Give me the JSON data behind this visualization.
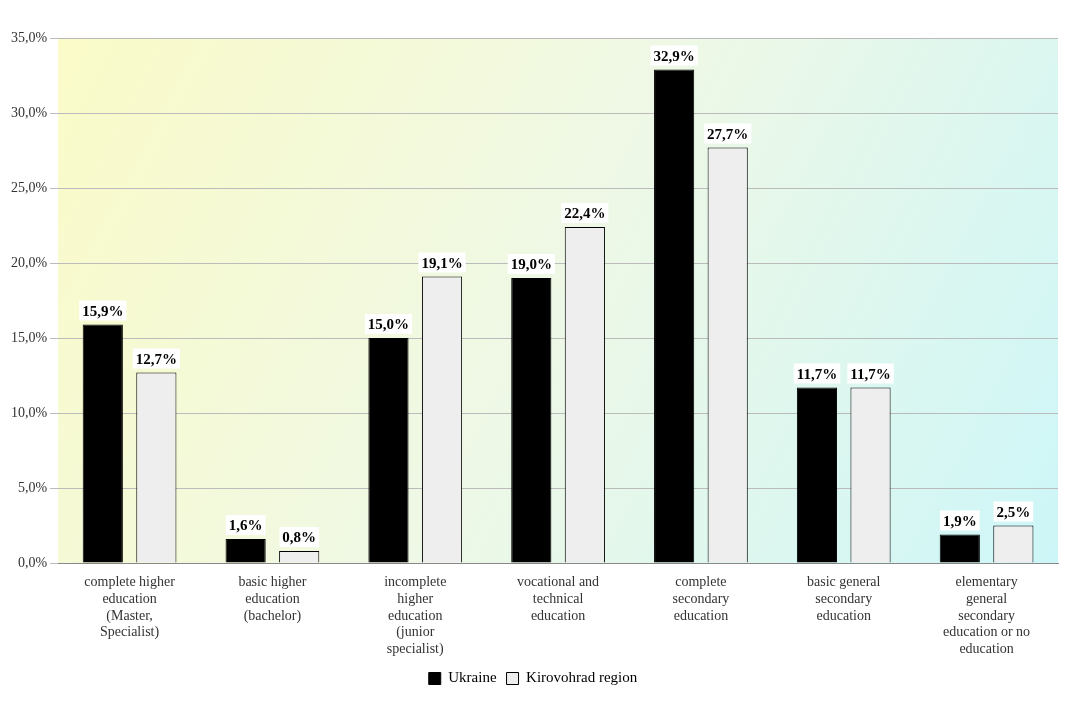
{
  "chart_data": {
    "type": "bar",
    "categories": [
      "complete higher education (Master, Specialist)",
      "basic higher education (bachelor)",
      "incomplete higher education (junior specialist)",
      "vocational and technical education",
      "complete secondary education",
      "basic general secondary education",
      "elementary general secondary education or no education"
    ],
    "series": [
      {
        "name": "Ukraine",
        "color": "#000000",
        "values": [
          15.9,
          1.6,
          15.0,
          19.0,
          32.9,
          11.7,
          1.9
        ],
        "value_labels": [
          "15,9%",
          "1,6%",
          "15,0%",
          "19,0%",
          "32,9%",
          "11,7%",
          "1,9%"
        ]
      },
      {
        "name": "Kirovohrad region",
        "color": "#eeeeee",
        "values": [
          12.7,
          0.8,
          19.1,
          22.4,
          27.7,
          11.7,
          2.5
        ],
        "value_labels": [
          "12,7%",
          "0,8%",
          "19,1%",
          "22,4%",
          "27,7%",
          "11,7%",
          "2,5%"
        ]
      }
    ],
    "ylim": [
      0,
      35
    ],
    "yticks": [
      {
        "value": 0,
        "label": "0,0%"
      },
      {
        "value": 5,
        "label": "5,0%"
      },
      {
        "value": 10,
        "label": "10,0%"
      },
      {
        "value": 15,
        "label": "15,0%"
      },
      {
        "value": 20,
        "label": "20,0%"
      },
      {
        "value": 25,
        "label": "25,0%"
      },
      {
        "value": 30,
        "label": "30,0%"
      },
      {
        "value": 35,
        "label": "35,0%"
      }
    ],
    "grid": "y",
    "legend": "bottom"
  }
}
